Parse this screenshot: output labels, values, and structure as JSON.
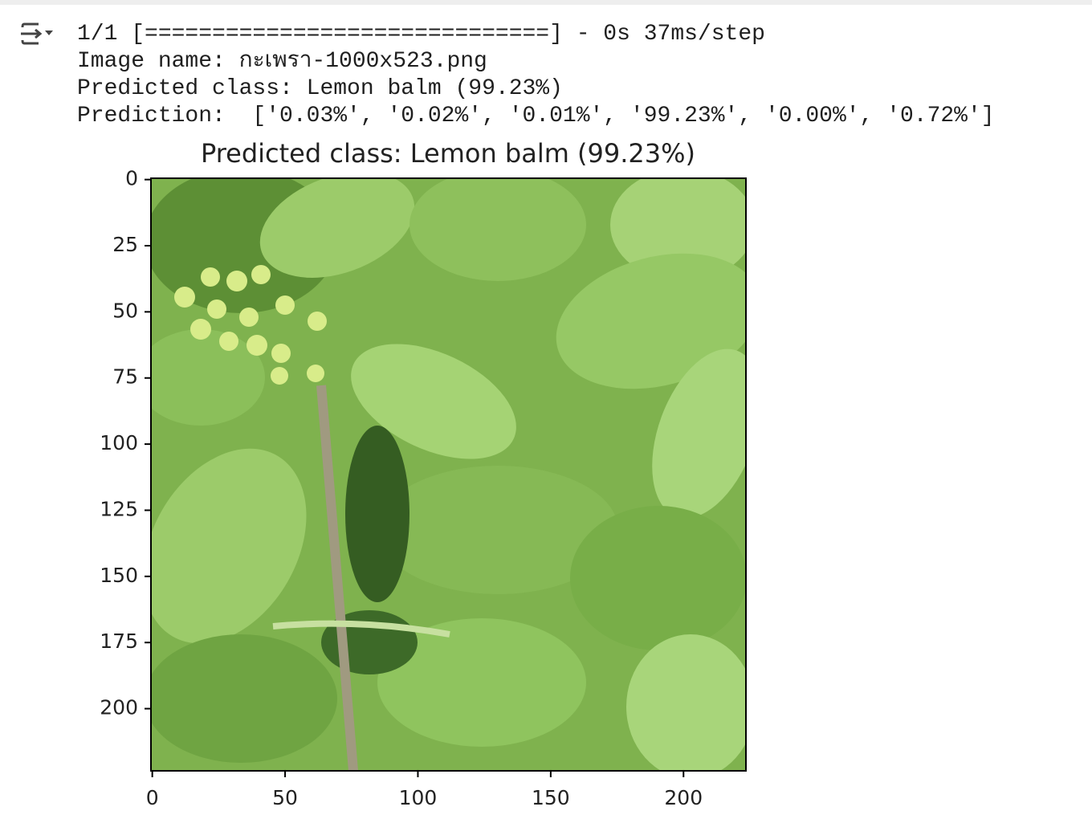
{
  "output": {
    "lines": [
      "1/1 [==============================] - 0s 37ms/step",
      "Image name: กะเพรา-1000x523.png",
      "Predicted class: Lemon balm (99.23%)",
      "Prediction:  ['0.03%', '0.02%', '0.01%', '99.23%', '0.00%', '0.72%']"
    ]
  },
  "chart_data": {
    "type": "image",
    "title": "Predicted class: Lemon balm (99.23%)",
    "xlim": [
      -0.5,
      223.5
    ],
    "ylim": [
      223.5,
      -0.5
    ],
    "xticks": [
      0,
      50,
      100,
      150,
      200
    ],
    "yticks": [
      0,
      25,
      50,
      75,
      100,
      125,
      150,
      175,
      200
    ]
  }
}
